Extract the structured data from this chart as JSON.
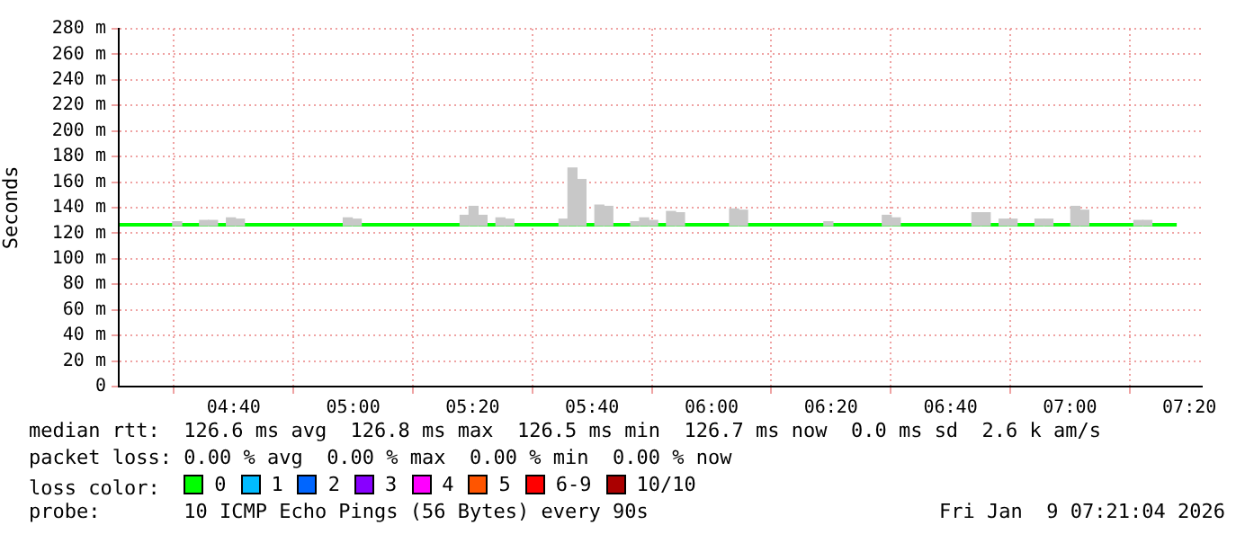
{
  "chart_data": {
    "type": "bar",
    "ylabel": "Seconds",
    "legend_title": "loss color:",
    "legend": "bottom",
    "grid": true,
    "xlim": [
      4.346,
      7.368
    ],
    "ylim": [
      0,
      280
    ],
    "xticks": [
      {
        "value": 4.6667,
        "label": "04:40"
      },
      {
        "value": 5,
        "label": "05:00"
      },
      {
        "value": 5.3333,
        "label": "05:20"
      },
      {
        "value": 5.6667,
        "label": "05:40"
      },
      {
        "value": 6,
        "label": "06:00"
      },
      {
        "value": 6.3333,
        "label": "06:20"
      },
      {
        "value": 6.6667,
        "label": "06:40"
      },
      {
        "value": 7,
        "label": "07:00"
      },
      {
        "value": 7.3333,
        "label": "07:20"
      }
    ],
    "yticks": [
      0,
      {
        "value": 20,
        "label": "20 m"
      },
      {
        "value": 40,
        "label": "40 m"
      },
      {
        "value": 60,
        "label": "60 m"
      },
      {
        "value": 80,
        "label": "80 m"
      },
      {
        "value": 100,
        "label": "100 m"
      },
      {
        "value": 120,
        "label": "120 m"
      },
      {
        "value": 140,
        "label": "140 m"
      },
      {
        "value": 160,
        "label": "160 m"
      },
      {
        "value": 180,
        "label": "180 m"
      },
      {
        "value": 200,
        "label": "200 m"
      },
      {
        "value": 220,
        "label": "220 m"
      },
      {
        "value": 240,
        "label": "240 m"
      },
      {
        "value": 260,
        "label": "260 m"
      },
      {
        "value": 280,
        "label": "280 m"
      }
    ],
    "series": [
      {
        "color": "#c8c8c8",
        "x": [
          4.509,
          4.584,
          4.609,
          4.659,
          4.684,
          4.985,
          5.01,
          5.311,
          5.336,
          5.361,
          5.411,
          5.436,
          5.587,
          5.612,
          5.637,
          5.687,
          5.712,
          5.787,
          5.812,
          5.837,
          5.887,
          5.912,
          6.063,
          6.088,
          6.326,
          6.489,
          6.514,
          6.739,
          6.765,
          6.815,
          6.84,
          6.915,
          6.94,
          7.015,
          7.04,
          7.191,
          7.216
        ],
        "base": [
          126,
          126,
          126,
          126,
          126,
          126,
          126,
          126,
          126,
          126,
          126,
          126,
          126,
          126,
          126,
          126,
          126,
          126,
          126,
          126,
          126,
          126,
          126,
          126,
          126,
          126,
          126,
          126,
          126,
          126,
          126,
          126,
          126,
          126,
          126,
          126,
          126
        ],
        "values": [
          3,
          4,
          4,
          6,
          5,
          6,
          5,
          8,
          15,
          8,
          6,
          5,
          5,
          45,
          36,
          16,
          15,
          3,
          6,
          4,
          11,
          10,
          13,
          12,
          3,
          8,
          6,
          10,
          10,
          5,
          5,
          5,
          5,
          15,
          12,
          4,
          4
        ]
      },
      {
        "type": "line",
        "name": "0",
        "color": "#00ff00",
        "x": [
          4.346,
          7.298
        ],
        "values": [
          126.6,
          126.6
        ]
      },
      {
        "type": "line",
        "name": "1",
        "color": "#00bbff"
      },
      {
        "type": "line",
        "name": "2",
        "color": "#0066ff"
      },
      {
        "type": "line",
        "name": "3",
        "color": "#8800ff"
      },
      {
        "type": "line",
        "name": "4",
        "color": "#ff00ff"
      },
      {
        "type": "line",
        "name": "5",
        "color": "#ff5500"
      },
      {
        "type": "line",
        "name": "6-9",
        "color": "#ff0000"
      },
      {
        "type": "line",
        "name": "10/10",
        "color": "#aa0000"
      }
    ],
    "annotations": [
      "median rtt:  126.6 ms avg  126.8 ms max  126.5 ms min  126.7 ms now  0.0 ms sd  2.6 k am/s",
      "packet loss: 0.00 % avg  0.00 % max  0.00 % min  0.00 % now",
      "probe:       10 ICMP Echo Pings (56 Bytes) every 90s",
      "Fri Jan  9 07:21:04 2026"
    ]
  }
}
